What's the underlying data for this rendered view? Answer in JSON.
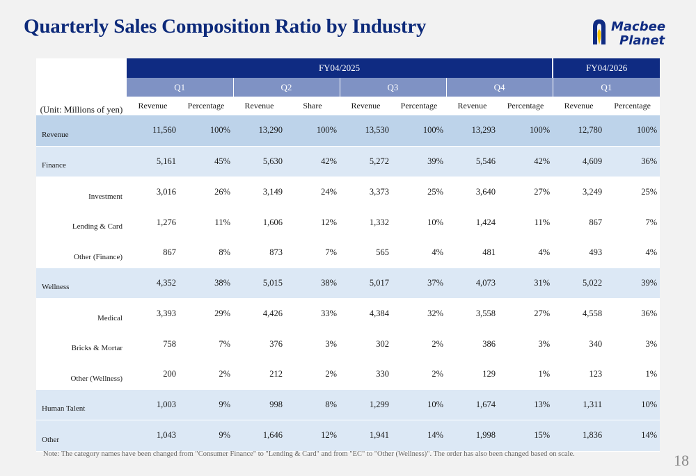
{
  "title": "Quarterly Sales Composition Ratio by Industry",
  "logo": {
    "line1": "Macbee",
    "line2": "Planet",
    "colors": {
      "blue": "#0f2b82",
      "yellow": "#f5c400"
    }
  },
  "unit_label": "(Unit: Millions of yen)",
  "fiscal_years": [
    "FY04/2025",
    "FY04/2026"
  ],
  "quarters": [
    "Q1",
    "Q2",
    "Q3",
    "Q4",
    "Q1"
  ],
  "column_headers": [
    "Revenue",
    "Percentage",
    "Revenue",
    "Share",
    "Revenue",
    "Percentage",
    "Revenue",
    "Percentage",
    "Revenue",
    "Percentage"
  ],
  "rows": [
    {
      "label": "Revenue",
      "level": "main",
      "shade": "dark",
      "cells": [
        "11,560",
        "100%",
        "13,290",
        "100%",
        "13,530",
        "100%",
        "13,293",
        "100%",
        "12,780",
        "100%"
      ]
    },
    {
      "label": "Finance",
      "level": "main",
      "shade": "light",
      "cells": [
        "5,161",
        "45%",
        "5,630",
        "42%",
        "5,272",
        "39%",
        "5,546",
        "42%",
        "4,609",
        "36%"
      ]
    },
    {
      "label": "Investment",
      "level": "sub",
      "shade": "none",
      "cells": [
        "3,016",
        "26%",
        "3,149",
        "24%",
        "3,373",
        "25%",
        "3,640",
        "27%",
        "3,249",
        "25%"
      ]
    },
    {
      "label": "Lending & Card",
      "level": "sub",
      "shade": "none",
      "cells": [
        "1,276",
        "11%",
        "1,606",
        "12%",
        "1,332",
        "10%",
        "1,424",
        "11%",
        "867",
        "7%"
      ]
    },
    {
      "label": "Other (Finance)",
      "level": "sub",
      "shade": "none",
      "cells": [
        "867",
        "8%",
        "873",
        "7%",
        "565",
        "4%",
        "481",
        "4%",
        "493",
        "4%"
      ]
    },
    {
      "label": "Wellness",
      "level": "main",
      "shade": "light",
      "cells": [
        "4,352",
        "38%",
        "5,015",
        "38%",
        "5,017",
        "37%",
        "4,073",
        "31%",
        "5,022",
        "39%"
      ]
    },
    {
      "label": "Medical",
      "level": "sub",
      "shade": "none",
      "cells": [
        "3,393",
        "29%",
        "4,426",
        "33%",
        "4,384",
        "32%",
        "3,558",
        "27%",
        "4,558",
        "36%"
      ]
    },
    {
      "label": "Bricks & Mortar",
      "level": "sub",
      "shade": "none",
      "cells": [
        "758",
        "7%",
        "376",
        "3%",
        "302",
        "2%",
        "386",
        "3%",
        "340",
        "3%"
      ]
    },
    {
      "label": "Other (Wellness)",
      "level": "sub",
      "shade": "none",
      "cells": [
        "200",
        "2%",
        "212",
        "2%",
        "330",
        "2%",
        "129",
        "1%",
        "123",
        "1%"
      ]
    },
    {
      "label": "Human Talent",
      "level": "main",
      "shade": "light",
      "cells": [
        "1,003",
        "9%",
        "998",
        "8%",
        "1,299",
        "10%",
        "1,674",
        "13%",
        "1,311",
        "10%"
      ]
    },
    {
      "label": "Other",
      "level": "main",
      "shade": "light",
      "cells": [
        "1,043",
        "9%",
        "1,646",
        "12%",
        "1,941",
        "14%",
        "1,998",
        "15%",
        "1,836",
        "14%"
      ]
    }
  ],
  "note": "Note: The category names have been changed from \"Consumer Finance\" to \"Lending & Card\" and from \"EC\" to \"Other (Wellness)\". The order has also been changed based on scale.",
  "page_number": "18",
  "colors": {
    "title": "#0d2a7a",
    "fy_header": "#0f2b82",
    "quarter_header": "#7f92c4",
    "row_dark": "#bdd3ea",
    "row_light": "#dce8f5"
  }
}
